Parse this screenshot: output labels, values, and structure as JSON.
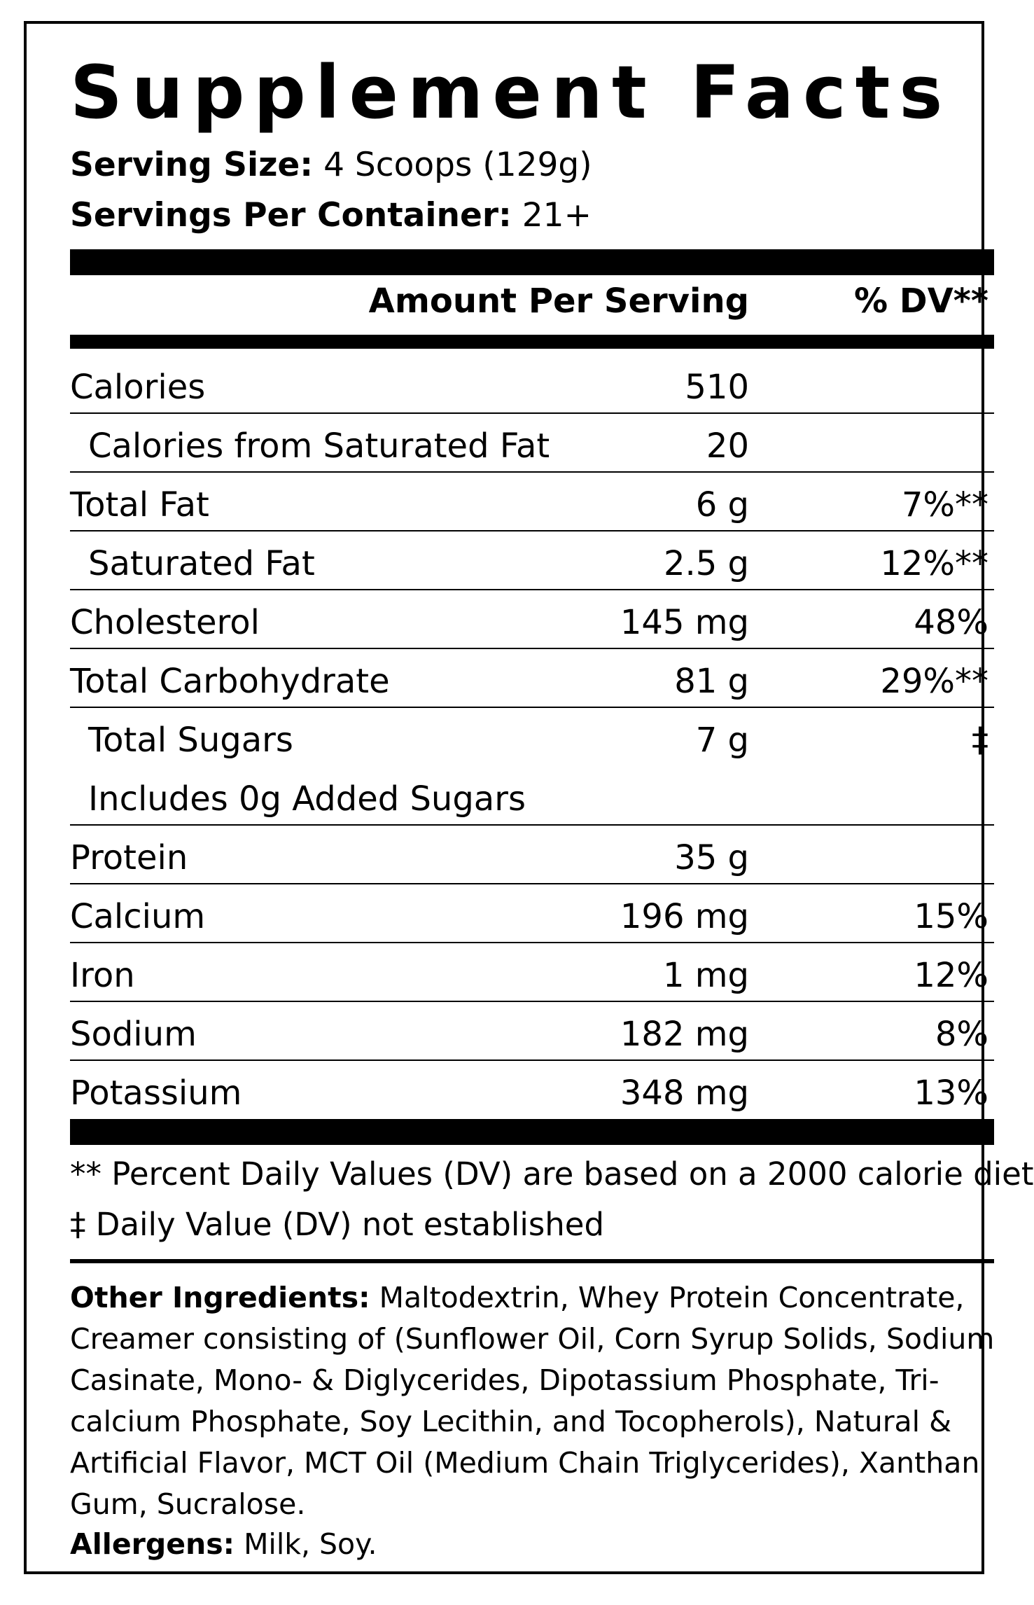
{
  "title": "Supplement Facts",
  "serving_size_label": "Serving Size:",
  "serving_size_value": "4 Scoops (129g)",
  "servings_per_container_label": "Servings Per Container:",
  "servings_per_container_value": "21+",
  "header": {
    "amount": "Amount Per Serving",
    "dv": "% DV**"
  },
  "rows": [
    {
      "name": "Calories",
      "amount": "510",
      "dv": ""
    },
    {
      "name": "Calories from Saturated Fat",
      "amount": "20",
      "dv": ""
    },
    {
      "name": "Total Fat",
      "amount": "6 g",
      "dv": "7%**"
    },
    {
      "name": "Saturated Fat",
      "amount": "2.5 g",
      "dv": "12%**"
    },
    {
      "name": "Cholesterol",
      "amount": "145 mg",
      "dv": "48%"
    },
    {
      "name": "Total Carbohydrate",
      "amount": "81 g",
      "dv": "29%**"
    },
    {
      "name": "Total Sugars",
      "amount": "7 g",
      "dv": "‡"
    },
    {
      "name": "Includes 0g Added Sugars",
      "amount": "",
      "dv": ""
    },
    {
      "name": "Protein",
      "amount": "35 g",
      "dv": ""
    },
    {
      "name": "Calcium",
      "amount": "196 mg",
      "dv": "15%"
    },
    {
      "name": "Iron",
      "amount": "1 mg",
      "dv": "12%"
    },
    {
      "name": "Sodium",
      "amount": "182 mg",
      "dv": "8%"
    },
    {
      "name": "Potassium",
      "amount": "348 mg",
      "dv": "13%"
    }
  ],
  "footnote_1": "** Percent Daily Values (DV) are based on a 2000 calorie diet",
  "footnote_2": "‡ Daily Value (DV) not established",
  "other_ingredients_label": "Other Ingredients:",
  "other_ingredients_text": "Maltodextrin, Whey Protein Concentrate, Creamer consisting of (Sunflower Oil, Corn Syrup Solids, Sodium Casinate, Mono- & Diglycerides, Dipotassium Phosphate, Tri-calcium Phosphate, Soy Lecithin, and Tocopherols), Natural & Artificial Flavor, MCT Oil (Medium Chain Triglycerides), Xanthan Gum, Sucralose.",
  "allergens_label": "Allergens:",
  "allergens_text": "Milk, Soy."
}
